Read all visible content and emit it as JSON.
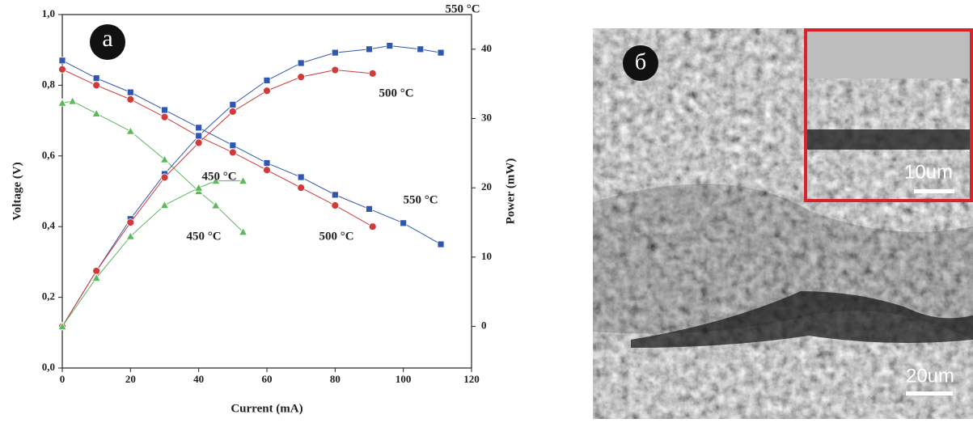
{
  "chart_data": {
    "type": "line",
    "x_label": "Current (mA)",
    "y_label": "Voltage (V)",
    "y2_label": "Power (mW)",
    "xlim": [
      0,
      120
    ],
    "xticks": [
      0,
      20,
      40,
      60,
      80,
      100,
      120
    ],
    "ylim": [
      0,
      1.0
    ],
    "yticks": [
      {
        "value": 0,
        "label": "0,0"
      },
      {
        "value": 0.2,
        "label": "0,2"
      },
      {
        "value": 0.4,
        "label": "0,4"
      },
      {
        "value": 0.6,
        "label": "0,6"
      },
      {
        "value": 0.8,
        "label": "0,8"
      },
      {
        "value": 1.0,
        "label": "1,0"
      }
    ],
    "y2lim": [
      -6,
      45
    ],
    "y2ticks": [
      0,
      10,
      20,
      30,
      40
    ],
    "series": [
      {
        "marker": "square",
        "color": "#2f56b0",
        "x": [
          0,
          10,
          20,
          30,
          40,
          50,
          60,
          70,
          80,
          90,
          100,
          111
        ],
        "values": [
          0.87,
          0.82,
          0.78,
          0.73,
          0.68,
          0.63,
          0.58,
          0.54,
          0.49,
          0.45,
          0.41,
          0.35
        ]
      },
      {
        "marker": "circle",
        "color": "#d23a3a",
        "x": [
          0,
          10,
          20,
          30,
          40,
          50,
          60,
          70,
          80,
          91
        ],
        "values": [
          0.845,
          0.8,
          0.76,
          0.71,
          0.655,
          0.61,
          0.56,
          0.51,
          0.46,
          0.4
        ]
      },
      {
        "marker": "triangle",
        "color": "#5cb85c",
        "x": [
          0,
          3,
          10,
          20,
          30,
          40,
          45,
          53
        ],
        "values": [
          0.75,
          0.755,
          0.72,
          0.67,
          0.59,
          0.5,
          0.46,
          0.385
        ]
      },
      {
        "marker": "square",
        "color": "#2f56b0",
        "axis": "y2",
        "x": [
          0,
          10,
          20,
          30,
          40,
          50,
          60,
          70,
          80,
          90,
          96,
          105,
          111
        ],
        "values": [
          0,
          8,
          15.5,
          22,
          27.5,
          32,
          35.5,
          38,
          39.5,
          40,
          40.5,
          40,
          39.5
        ]
      },
      {
        "marker": "circle",
        "color": "#d23a3a",
        "axis": "y2",
        "x": [
          0,
          10,
          20,
          30,
          40,
          50,
          60,
          70,
          80,
          91
        ],
        "values": [
          0,
          8,
          15,
          21.5,
          26.5,
          31,
          34,
          36,
          37,
          36.5
        ]
      },
      {
        "marker": "triangle",
        "color": "#5cb85c",
        "axis": "y2",
        "x": [
          0,
          10,
          20,
          30,
          40,
          45,
          53
        ],
        "values": [
          0,
          7,
          13,
          17.5,
          20,
          21,
          21
        ]
      }
    ],
    "panel_label": "a",
    "annotations": [
      "550 °C",
      "500 °C",
      "450 °C",
      "550 °C",
      "450 °C",
      "500 °C"
    ]
  },
  "image": {
    "panel_label": "б",
    "inset_scale": "10um",
    "scale": "20um"
  }
}
